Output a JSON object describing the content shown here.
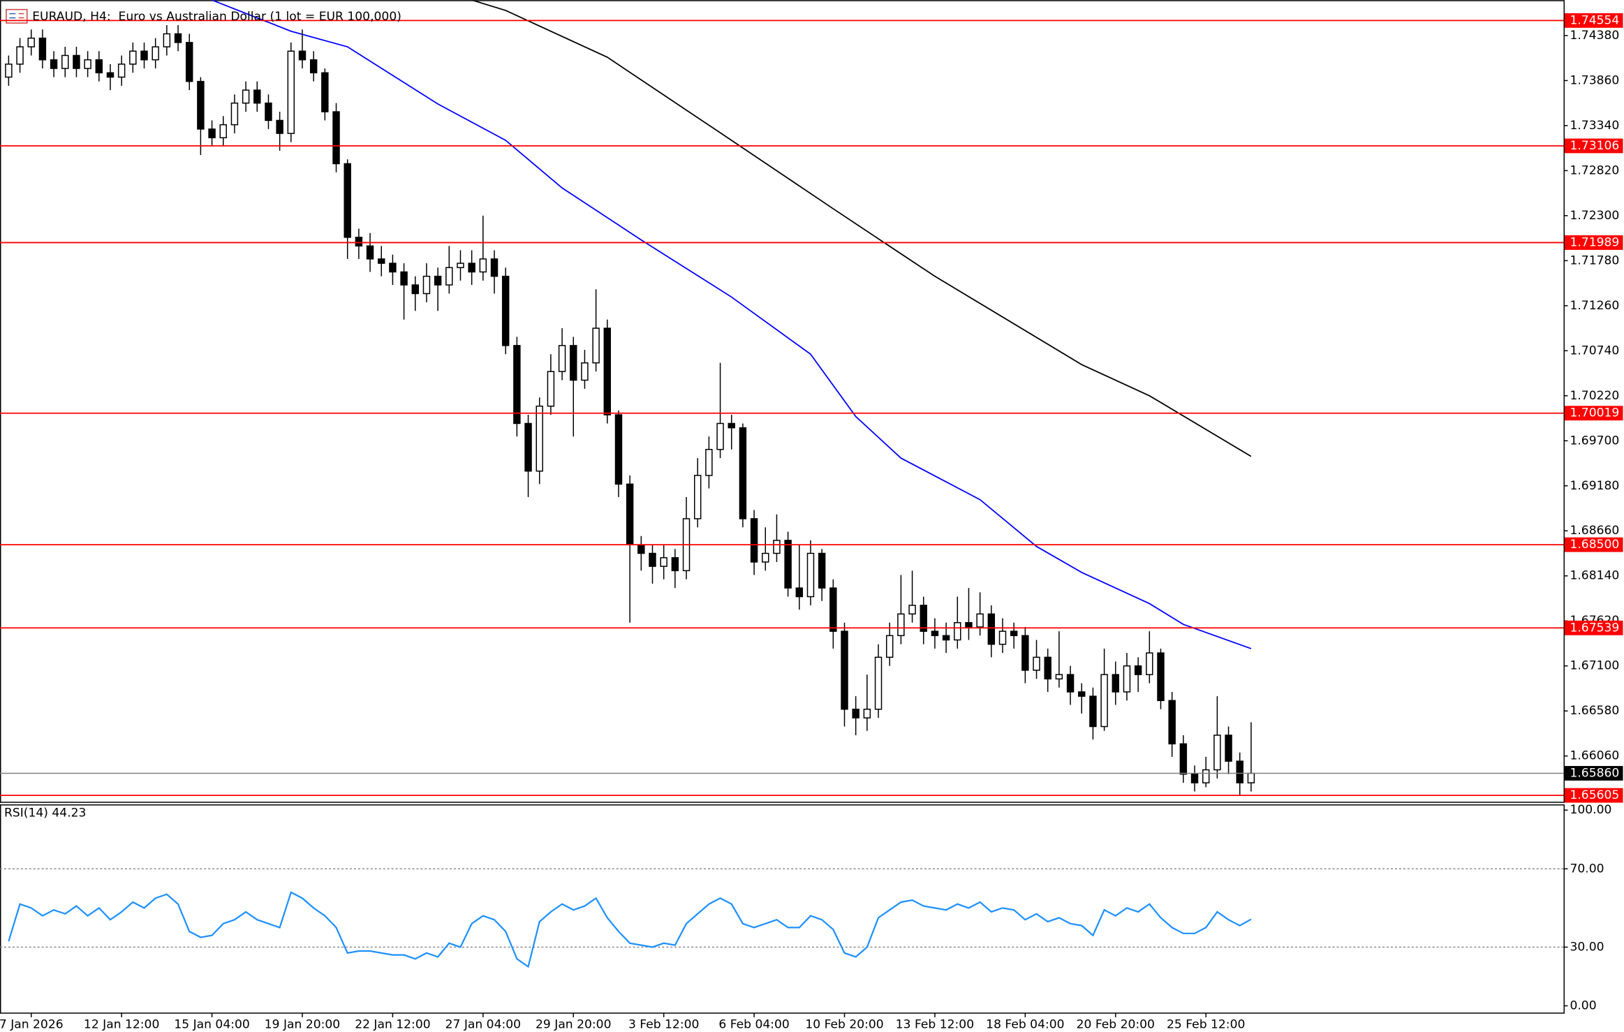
{
  "header": {
    "title": "EURAUD, H4:  Euro vs Australian Dollar (1 lot = EUR 100,000)"
  },
  "chart_data": [
    {
      "type": "candlestick",
      "categories": [
        null,
        null,
        "7 Jan 2026",
        null,
        null,
        null,
        null,
        null,
        null,
        null,
        "12 Jan 12:00",
        null,
        null,
        null,
        null,
        null,
        null,
        null,
        "15 Jan 04:00",
        null,
        null,
        null,
        null,
        null,
        null,
        null,
        "19 Jan 20:00",
        null,
        null,
        null,
        null,
        null,
        null,
        null,
        "22 Jan 12:00",
        null,
        null,
        null,
        null,
        null,
        null,
        null,
        "27 Jan 04:00",
        null,
        null,
        null,
        null,
        null,
        null,
        null,
        "29 Jan 20:00",
        null,
        null,
        null,
        null,
        null,
        null,
        null,
        "3 Feb 12:00",
        null,
        null,
        null,
        null,
        null,
        null,
        null,
        "6 Feb 04:00",
        null,
        null,
        null,
        null,
        null,
        null,
        null,
        "10 Feb 20:00",
        null,
        null,
        null,
        null,
        null,
        null,
        null,
        "13 Feb 12:00",
        null,
        null,
        null,
        null,
        null,
        null,
        null,
        "18 Feb 04:00",
        null,
        null,
        null,
        null,
        null,
        null,
        null,
        "20 Feb 20:00",
        null,
        null,
        null,
        null,
        null,
        null,
        null,
        "25 Feb 12:00",
        null,
        null,
        null,
        null
      ],
      "open": [
        1.739,
        1.7405,
        1.7425,
        1.7435,
        1.741,
        1.74,
        1.7415,
        1.74,
        1.741,
        1.7395,
        1.739,
        1.7405,
        1.742,
        1.741,
        1.7425,
        1.744,
        1.743,
        1.7385,
        1.733,
        1.732,
        1.7335,
        1.736,
        1.7375,
        1.736,
        1.734,
        1.7325,
        1.742,
        1.741,
        1.7395,
        1.735,
        1.729,
        1.7205,
        1.7195,
        1.718,
        1.7175,
        1.7165,
        1.715,
        1.714,
        1.716,
        1.715,
        1.717,
        1.7175,
        1.7165,
        1.718,
        1.716,
        1.708,
        1.699,
        1.6935,
        1.701,
        1.705,
        1.708,
        1.704,
        1.706,
        1.71,
        1.7,
        1.692,
        1.685,
        1.684,
        1.6825,
        1.6835,
        1.682,
        1.688,
        1.693,
        1.696,
        1.699,
        1.6985,
        1.688,
        1.683,
        1.684,
        1.6855,
        1.68,
        1.679,
        1.684,
        1.68,
        1.675,
        1.666,
        1.665,
        1.666,
        1.672,
        1.6745,
        1.677,
        1.678,
        1.675,
        1.6745,
        1.674,
        1.676,
        1.6755,
        1.677,
        1.6735,
        1.675,
        1.6745,
        1.6705,
        1.672,
        1.6695,
        1.67,
        1.668,
        1.6675,
        1.664,
        1.67,
        1.668,
        1.671,
        1.67,
        1.6725,
        1.667,
        1.662,
        1.6585,
        1.6575,
        1.659,
        1.663,
        1.66,
        1.6575
      ],
      "high": [
        1.7415,
        1.7435,
        1.7445,
        1.7445,
        1.742,
        1.7425,
        1.7425,
        1.742,
        1.742,
        1.7405,
        1.7415,
        1.743,
        1.743,
        1.7435,
        1.745,
        1.745,
        1.744,
        1.739,
        1.734,
        1.7345,
        1.737,
        1.7385,
        1.7385,
        1.737,
        1.735,
        1.743,
        1.7445,
        1.742,
        1.74,
        1.736,
        1.7295,
        1.7215,
        1.721,
        1.7195,
        1.7185,
        1.7175,
        1.716,
        1.7175,
        1.717,
        1.7195,
        1.719,
        1.719,
        1.723,
        1.719,
        1.717,
        1.709,
        1.7,
        1.702,
        1.707,
        1.71,
        1.709,
        1.7075,
        1.7145,
        1.711,
        1.7005,
        1.693,
        1.686,
        1.685,
        1.685,
        1.6845,
        1.6905,
        1.695,
        1.6975,
        1.706,
        1.7,
        1.699,
        1.689,
        1.687,
        1.6885,
        1.6865,
        1.685,
        1.6855,
        1.6845,
        1.681,
        1.676,
        1.6675,
        1.67,
        1.6735,
        1.676,
        1.6815,
        1.682,
        1.679,
        1.6765,
        1.676,
        1.679,
        1.68,
        1.6795,
        1.678,
        1.6765,
        1.676,
        1.6755,
        1.674,
        1.673,
        1.675,
        1.671,
        1.669,
        1.6685,
        1.673,
        1.6715,
        1.6725,
        1.672,
        1.675,
        1.673,
        1.668,
        1.663,
        1.6595,
        1.6605,
        1.6675,
        1.664,
        1.661,
        1.6645
      ],
      "low": [
        1.738,
        1.7395,
        1.7415,
        1.74,
        1.739,
        1.739,
        1.739,
        1.739,
        1.7385,
        1.7375,
        1.738,
        1.7395,
        1.74,
        1.74,
        1.7415,
        1.742,
        1.7375,
        1.73,
        1.731,
        1.731,
        1.7325,
        1.735,
        1.735,
        1.733,
        1.7305,
        1.7315,
        1.74,
        1.7385,
        1.734,
        1.728,
        1.718,
        1.718,
        1.7165,
        1.716,
        1.715,
        1.711,
        1.712,
        1.713,
        1.712,
        1.714,
        1.7155,
        1.715,
        1.7155,
        1.714,
        1.707,
        1.6975,
        1.6905,
        1.692,
        1.7,
        1.704,
        1.6975,
        1.703,
        1.705,
        1.699,
        1.6905,
        1.676,
        1.682,
        1.6805,
        1.681,
        1.68,
        1.681,
        1.687,
        1.6915,
        1.695,
        1.696,
        1.687,
        1.6815,
        1.682,
        1.683,
        1.679,
        1.6775,
        1.678,
        1.6785,
        1.673,
        1.664,
        1.663,
        1.6635,
        1.665,
        1.671,
        1.6735,
        1.676,
        1.6735,
        1.673,
        1.6725,
        1.673,
        1.674,
        1.6745,
        1.672,
        1.6725,
        1.673,
        1.669,
        1.6695,
        1.668,
        1.6685,
        1.6665,
        1.6655,
        1.6625,
        1.6635,
        1.6665,
        1.667,
        1.668,
        1.669,
        1.666,
        1.6605,
        1.6575,
        1.6565,
        1.657,
        1.658,
        1.6585,
        1.656,
        1.6565
      ],
      "close": [
        1.7405,
        1.7425,
        1.7435,
        1.741,
        1.74,
        1.7415,
        1.74,
        1.741,
        1.7395,
        1.739,
        1.7405,
        1.742,
        1.741,
        1.7425,
        1.744,
        1.743,
        1.7385,
        1.733,
        1.732,
        1.7335,
        1.736,
        1.7375,
        1.736,
        1.734,
        1.7325,
        1.742,
        1.741,
        1.7395,
        1.735,
        1.729,
        1.7205,
        1.7195,
        1.718,
        1.7175,
        1.7165,
        1.715,
        1.714,
        1.716,
        1.715,
        1.717,
        1.7175,
        1.7165,
        1.718,
        1.716,
        1.708,
        1.699,
        1.6935,
        1.701,
        1.705,
        1.708,
        1.704,
        1.706,
        1.71,
        1.7,
        1.692,
        1.685,
        1.684,
        1.6825,
        1.6835,
        1.682,
        1.688,
        1.693,
        1.696,
        1.699,
        1.6985,
        1.688,
        1.683,
        1.684,
        1.6855,
        1.68,
        1.679,
        1.684,
        1.68,
        1.675,
        1.666,
        1.665,
        1.666,
        1.672,
        1.6745,
        1.677,
        1.678,
        1.675,
        1.6745,
        1.674,
        1.676,
        1.6755,
        1.677,
        1.6735,
        1.675,
        1.6745,
        1.6705,
        1.672,
        1.6695,
        1.67,
        1.668,
        1.6675,
        1.664,
        1.67,
        1.668,
        1.671,
        1.67,
        1.6725,
        1.667,
        1.662,
        1.6585,
        1.6575,
        1.659,
        1.663,
        1.66,
        1.6575,
        1.6586
      ],
      "up_color": "#ffffff",
      "down_color": "#000000",
      "ylim": [
        1.65531,
        1.74789
      ],
      "yticks": [
        {
          "value": 1.7438,
          "label": "1.74380"
        },
        {
          "value": 1.7386,
          "label": "1.73860"
        },
        {
          "value": 1.7334,
          "label": "1.73340"
        },
        {
          "value": 1.7282,
          "label": "1.72820"
        },
        {
          "value": 1.723,
          "label": "1.72300"
        },
        {
          "value": 1.7178,
          "label": "1.71780"
        },
        {
          "value": 1.7126,
          "label": "1.71260"
        },
        {
          "value": 1.7074,
          "label": "1.70740"
        },
        {
          "value": 1.7022,
          "label": "1.70220"
        },
        {
          "value": 1.697,
          "label": "1.69700"
        },
        {
          "value": 1.6918,
          "label": "1.69180"
        },
        {
          "value": 1.6866,
          "label": "1.68660"
        },
        {
          "value": 1.6814,
          "label": "1.68140"
        },
        {
          "value": 1.6762,
          "label": "1.67620"
        },
        {
          "value": 1.671,
          "label": "1.67100"
        },
        {
          "value": 1.6658,
          "label": "1.66580"
        },
        {
          "value": 1.6606,
          "label": "1.66060"
        }
      ],
      "moving_averages": [
        {
          "color": "#0000ff",
          "x": [
            18,
            25,
            30,
            38,
            44,
            49,
            56,
            64,
            71,
            75,
            79,
            86,
            91,
            95,
            101,
            104,
            110
          ],
          "values": [
            1.7479,
            1.7443,
            1.7425,
            1.7359,
            1.7317,
            1.7262,
            1.7202,
            1.7136,
            1.707,
            1.6998,
            1.695,
            1.6902,
            1.6848,
            1.6818,
            1.6782,
            1.6758,
            1.673
          ]
        },
        {
          "color": "#000000",
          "x": [
            41,
            44,
            53,
            64,
            73,
            82,
            95,
            101,
            110
          ],
          "values": [
            1.7479,
            1.7467,
            1.7413,
            1.7317,
            1.7238,
            1.716,
            1.7058,
            1.7022,
            1.6952
          ]
        }
      ],
      "level_color": "#ff0000",
      "levels": [
        1.74554,
        1.73106,
        1.71989,
        1.70019,
        {
          "value": 1.685,
          "label": "1.68500"
        },
        1.67539,
        1.65605
      ],
      "last_price": {
        "value": 1.6586,
        "label": "1.65860"
      }
    },
    {
      "type": "line",
      "title": "RSI(14) 44.23",
      "color": "#1e90ff",
      "values": [
        33,
        52,
        50,
        46,
        49,
        47,
        51,
        46,
        50,
        44,
        48,
        53,
        50,
        55,
        57,
        52,
        38,
        35,
        36,
        42,
        44,
        48,
        44,
        42,
        40,
        58,
        55,
        50,
        46,
        40,
        27,
        28,
        28,
        27,
        26,
        26,
        24,
        27,
        25,
        32,
        30,
        42,
        46,
        44,
        38,
        24,
        20,
        43,
        48,
        52,
        49,
        51,
        55,
        45,
        38,
        32,
        31,
        30,
        32,
        31,
        42,
        47,
        52,
        55,
        52,
        42,
        40,
        42,
        44,
        40,
        40,
        46,
        44,
        39,
        27,
        25,
        30,
        45,
        49,
        53,
        54,
        51,
        50,
        49,
        52,
        50,
        53,
        48,
        50,
        49,
        44,
        47,
        43,
        45,
        42,
        41,
        36,
        49,
        46,
        50,
        48,
        52,
        45,
        40,
        37,
        37,
        40,
        48,
        44,
        41,
        44.23
      ],
      "ylim": [
        0,
        100
      ],
      "yticks": [
        {
          "value": 100,
          "label": "100.00"
        },
        {
          "value": 70,
          "label": "70.00"
        },
        {
          "value": 30,
          "label": "30.00"
        },
        {
          "value": 0,
          "label": "0.00"
        }
      ]
    }
  ]
}
